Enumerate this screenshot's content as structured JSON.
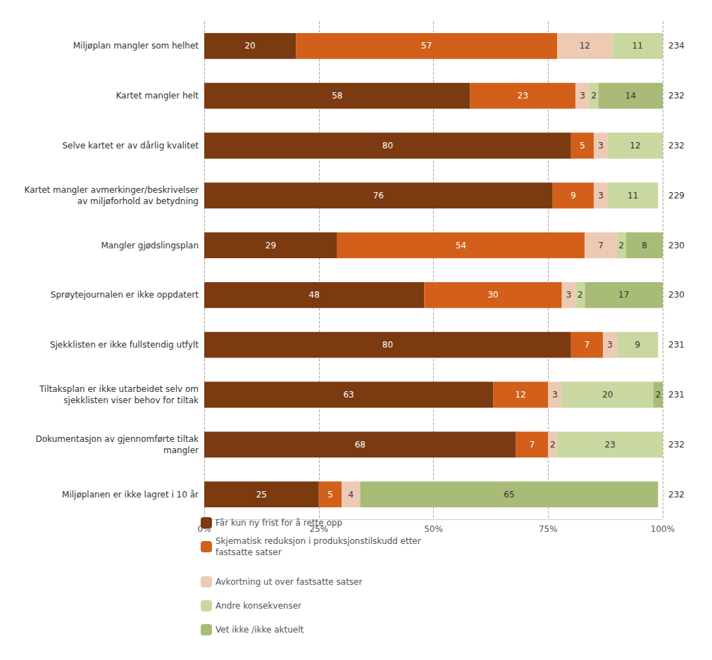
{
  "chart_data": {
    "type": "bar",
    "orientation": "horizontal",
    "stacked": true,
    "data_labels": true,
    "grid": true,
    "legend": "bottom",
    "categories": [
      "Miljøplan mangler som helhet",
      "Kartet mangler helt",
      "Selve kartet er av dårlig kvalitet",
      "Kartet mangler avmerkinger/beskrivelser\nav miljøforhold av betydning",
      "Mangler gjødslingsplan",
      "Sprøytejournalen er ikke oppdatert",
      "Sjekklisten er ikke fullstendig utfylt",
      "Tiltaksplan er ikke utarbeidet selv om\nsjekklisten viser behov for tiltak",
      "Dokumentasjon av gjennomførte tiltak\nmangler",
      "Miljøplanen er ikke lagret i 10 år"
    ],
    "series": [
      {
        "name": "Får kun ny frist for å rette opp",
        "color": "#7B3A10",
        "values": [
          20,
          58,
          80,
          76,
          29,
          48,
          80,
          63,
          68,
          25
        ]
      },
      {
        "name": "Skjematisk reduksjon i produksjonstilskudd etter fastsatte satser",
        "color": "#D2601A",
        "values": [
          57,
          23,
          5,
          9,
          54,
          30,
          7,
          12,
          7,
          5
        ]
      },
      {
        "name": "Avkortning ut over fastsatte satser",
        "color": "#EDCAB4",
        "values": [
          12,
          3,
          3,
          3,
          7,
          3,
          3,
          3,
          2,
          4
        ]
      },
      {
        "name": "Andre konsekvenser",
        "color": "#C8D8A0",
        "values": [
          11,
          2,
          12,
          11,
          2,
          2,
          9,
          20,
          23,
          0
        ]
      },
      {
        "name": "Vet ikke /ikke aktuelt",
        "color": "#A8BC78",
        "values": [
          0,
          14,
          0,
          0,
          8,
          17,
          0,
          2,
          0,
          65
        ]
      }
    ],
    "n_values": [
      234,
      232,
      232,
      229,
      230,
      230,
      231,
      231,
      232,
      232
    ],
    "xlim": [
      0,
      100
    ],
    "xticks": [
      {
        "value": 0,
        "label": "0%"
      },
      {
        "value": 25,
        "label": "25%"
      },
      {
        "value": 50,
        "label": "50%"
      },
      {
        "value": 75,
        "label": "75%"
      },
      {
        "value": 100,
        "label": "100%"
      }
    ]
  }
}
